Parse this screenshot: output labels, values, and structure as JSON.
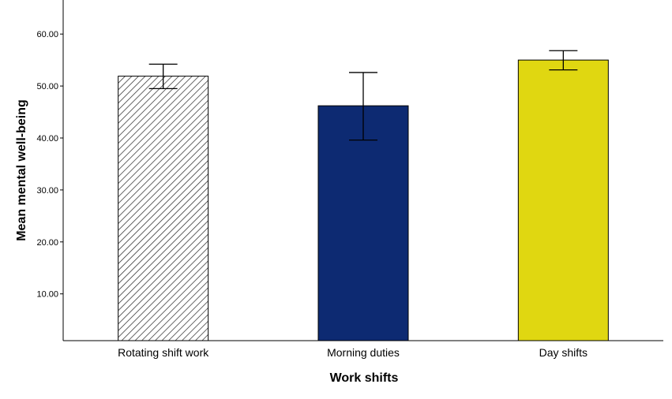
{
  "chart_data": {
    "type": "bar",
    "title": "",
    "xlabel": "Work shifts",
    "ylabel": "Mean mental well-being",
    "categories": [
      "Rotating shift work",
      "Morning duties",
      "Day shifts"
    ],
    "values": [
      51.9,
      46.2,
      55.0
    ],
    "error_bars": [
      {
        "low": 49.5,
        "high": 54.2
      },
      {
        "low": 39.6,
        "high": 52.6
      },
      {
        "low": 53.1,
        "high": 56.8
      }
    ],
    "yticks": [
      10,
      20,
      30,
      40,
      50,
      60
    ],
    "ytick_labels": [
      "10.00",
      "20.00",
      "30.00",
      "40.00",
      "50.00",
      "60.00"
    ],
    "ylim": [
      1,
      68
    ],
    "grid": false,
    "fills": [
      "hatch",
      "#0d2a72",
      "#e0d711"
    ]
  }
}
